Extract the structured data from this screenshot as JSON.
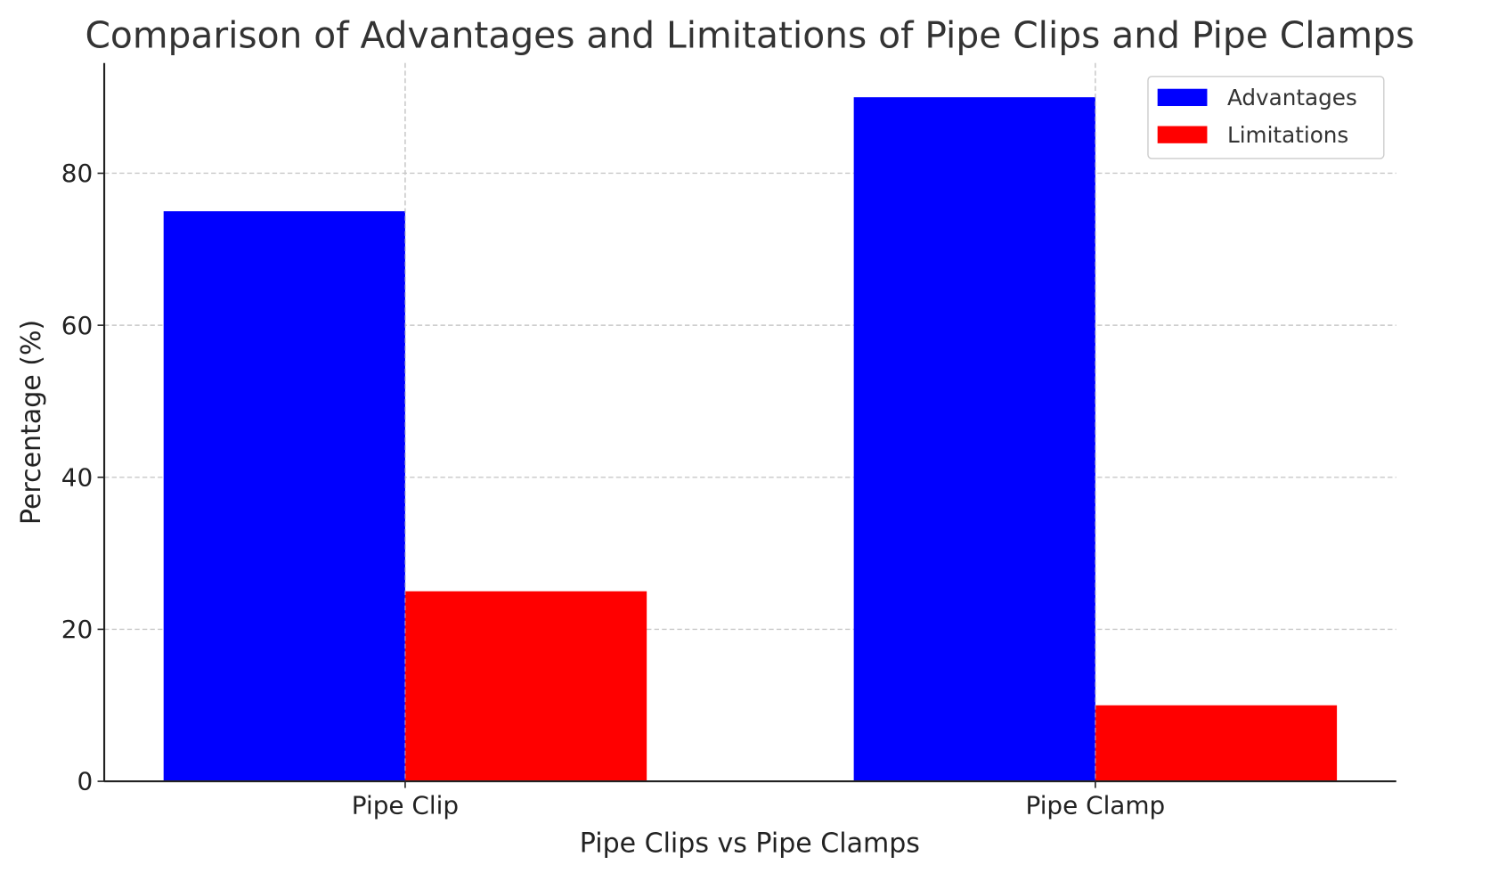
{
  "chart_data": {
    "type": "bar",
    "title": "Comparison of Advantages and Limitations of Pipe Clips and Pipe Clamps",
    "xlabel": "Pipe Clips vs Pipe Clamps",
    "ylabel": "Percentage (%)",
    "categories": [
      "Pipe Clip",
      "Pipe Clamp"
    ],
    "series": [
      {
        "name": "Advantages",
        "values": [
          75,
          90
        ],
        "color": "#0000ff"
      },
      {
        "name": "Limitations",
        "values": [
          25,
          10
        ],
        "color": "#ff0000"
      }
    ],
    "ylim": [
      0,
      94.5
    ],
    "yticks": [
      0,
      20,
      40,
      60,
      80
    ],
    "grid": true,
    "legend": "top-right"
  }
}
